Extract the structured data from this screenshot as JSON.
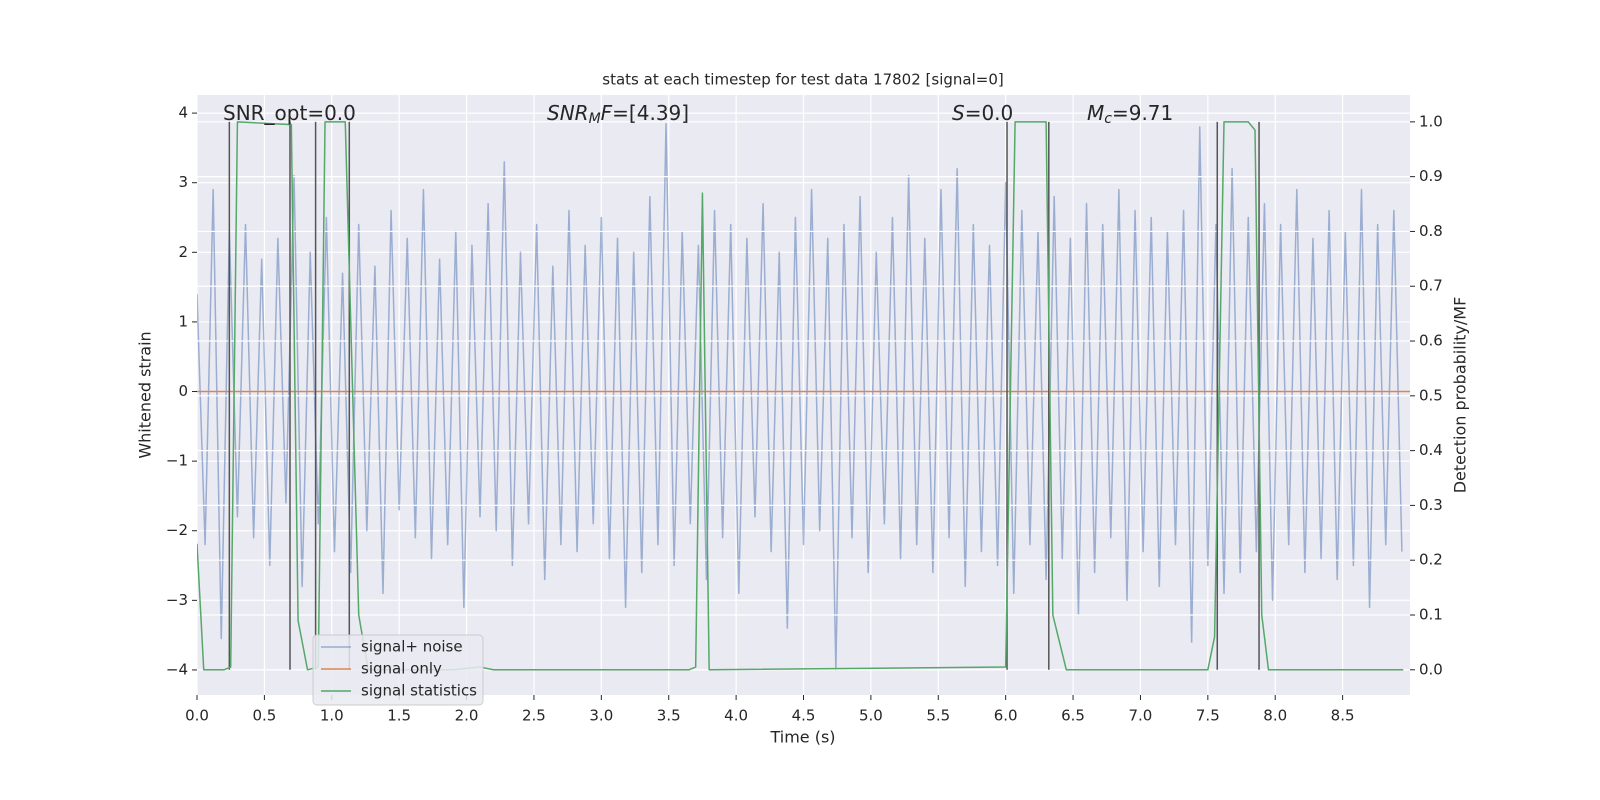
{
  "chart_data": {
    "type": "line",
    "title": "stats at each timestep for test data 17802 [signal=0]",
    "xlabel": "Time (s)",
    "ylabel": "Whitened strain",
    "y2label": "Detection probability/MF",
    "xlim": [
      0,
      9.0
    ],
    "ylim": [
      -4.36,
      4.26
    ],
    "y2lim": [
      -0.046,
      1.049
    ],
    "xticks": [
      {
        "value": 0,
        "label": "0.0"
      },
      0.5,
      {
        "value": 1,
        "label": "1.0"
      },
      1.5,
      {
        "value": 2,
        "label": "2.0"
      },
      2.5,
      {
        "value": 3,
        "label": "3.0"
      },
      3.5,
      {
        "value": 4,
        "label": "4.0"
      },
      4.5,
      {
        "value": 5,
        "label": "5.0"
      },
      5.5,
      {
        "value": 6,
        "label": "6.0"
      },
      6.5,
      {
        "value": 7,
        "label": "7.0"
      },
      7.5,
      {
        "value": 8,
        "label": "8.0"
      },
      8.5
    ],
    "yticks": [
      {
        "value": -4,
        "label": "−4"
      },
      {
        "value": -3,
        "label": "−3"
      },
      {
        "value": -2,
        "label": "−2"
      },
      {
        "value": -1,
        "label": "−1"
      },
      0,
      1,
      2,
      3,
      4
    ],
    "y2ticks": [
      {
        "value": 0,
        "label": "0.0"
      },
      0.1,
      0.2,
      0.3,
      0.4,
      0.5,
      0.6,
      0.7,
      0.8,
      0.9,
      {
        "value": 1,
        "label": "1.0"
      }
    ],
    "grid": true,
    "series": [
      {
        "name": "signal+ noise",
        "color": "#4c72b0",
        "opacity": 0.5,
        "x": [
          0,
          0.06,
          0.12,
          0.18,
          0.24,
          0.3,
          0.36,
          0.42,
          0.48,
          0.54,
          0.6,
          0.66,
          0.72,
          0.78,
          0.84,
          0.9,
          0.96,
          1.02,
          1.08,
          1.14,
          1.2,
          1.26,
          1.32,
          1.38,
          1.44,
          1.5,
          1.56,
          1.62,
          1.68,
          1.74,
          1.8,
          1.86,
          1.92,
          1.98,
          2.04,
          2.1,
          2.16,
          2.22,
          2.28,
          2.34,
          2.4,
          2.46,
          2.52,
          2.58,
          2.64,
          2.7,
          2.76,
          2.82,
          2.88,
          2.94,
          3,
          3.06,
          3.12,
          3.18,
          3.24,
          3.3,
          3.36,
          3.42,
          3.48,
          3.54,
          3.6,
          3.66,
          3.72,
          3.78,
          3.84,
          3.9,
          3.96,
          4.02,
          4.08,
          4.14,
          4.2,
          4.26,
          4.32,
          4.38,
          4.44,
          4.5,
          4.56,
          4.62,
          4.68,
          4.74,
          4.8,
          4.86,
          4.92,
          4.98,
          5.04,
          5.1,
          5.16,
          5.22,
          5.28,
          5.34,
          5.4,
          5.46,
          5.52,
          5.58,
          5.64,
          5.7,
          5.76,
          5.82,
          5.88,
          5.94,
          6,
          6.06,
          6.12,
          6.18,
          6.24,
          6.3,
          6.36,
          6.42,
          6.48,
          6.54,
          6.6,
          6.66,
          6.72,
          6.78,
          6.84,
          6.9,
          6.96,
          7.02,
          7.08,
          7.14,
          7.2,
          7.26,
          7.32,
          7.38,
          7.44,
          7.5,
          7.56,
          7.62,
          7.68,
          7.74,
          7.8,
          7.86,
          7.92,
          7.98,
          8.04,
          8.1,
          8.16,
          8.22,
          8.28,
          8.34,
          8.4,
          8.46,
          8.52,
          8.58,
          8.64,
          8.7,
          8.76,
          8.82,
          8.88,
          8.94
        ],
        "values": [
          1.4,
          -2.2,
          2.9,
          -3.55,
          2.3,
          -1.8,
          2.4,
          -2.1,
          1.9,
          -2.5,
          2.2,
          -1.6,
          3.1,
          -2.8,
          2.0,
          -1.9,
          2.5,
          -2.3,
          1.7,
          -2.6,
          2.4,
          -2.0,
          1.8,
          -2.9,
          2.6,
          -1.7,
          2.2,
          -2.1,
          2.9,
          -2.4,
          1.9,
          -2.2,
          2.3,
          -3.1,
          2.1,
          -1.8,
          2.7,
          -2.0,
          3.3,
          -2.5,
          2.0,
          -1.9,
          2.4,
          -2.7,
          1.8,
          -2.2,
          2.6,
          -2.3,
          2.1,
          -1.9,
          2.5,
          -2.4,
          2.2,
          -3.1,
          2.0,
          -2.6,
          2.8,
          -2.2,
          3.85,
          -2.5,
          2.3,
          -1.9,
          2.1,
          -2.7,
          2.6,
          -2.1,
          2.4,
          -2.9,
          2.2,
          -1.8,
          2.7,
          -2.3,
          2.0,
          -3.4,
          2.5,
          -2.2,
          2.9,
          -2.0,
          2.2,
          -4.0,
          2.4,
          -2.1,
          2.8,
          -2.6,
          2.0,
          -1.9,
          2.5,
          -2.4,
          3.1,
          -2.2,
          2.2,
          -2.6,
          2.9,
          -2.1,
          3.2,
          -2.8,
          2.4,
          -2.3,
          2.1,
          -2.5,
          3.0,
          -2.9,
          2.6,
          -2.2,
          2.3,
          -2.7,
          2.8,
          -2.4,
          2.2,
          -3.2,
          2.7,
          -2.6,
          2.4,
          -2.1,
          2.9,
          -3.0,
          2.6,
          -2.3,
          2.5,
          -2.8,
          2.3,
          -2.2,
          2.6,
          -3.6,
          3.8,
          -2.5,
          2.4,
          -2.9,
          3.2,
          -2.6,
          2.5,
          -2.3,
          2.7,
          -3.0,
          2.4,
          -2.2,
          2.9,
          -2.6,
          2.2,
          -2.4,
          2.6,
          -2.7,
          2.3,
          -2.5,
          2.9,
          -3.1,
          2.4,
          -2.2,
          2.6,
          -2.3
        ]
      },
      {
        "name": "signal only",
        "color": "#dd8452",
        "x": [
          0,
          9.0
        ],
        "values": [
          0,
          0
        ]
      },
      {
        "name": "signal statistics",
        "color": "#55a868",
        "axis": "y2",
        "x": [
          0,
          0.05,
          0.2,
          0.25,
          0.3,
          0.7,
          0.75,
          0.82,
          0.9,
          0.95,
          1.1,
          1.2,
          1.27,
          1.9,
          2.1,
          2.2,
          3.65,
          3.7,
          3.75,
          3.8,
          6.0,
          6.07,
          6.3,
          6.35,
          6.45,
          7.5,
          7.55,
          7.62,
          7.8,
          7.85,
          7.9,
          7.95,
          8.95
        ],
        "values": [
          0.23,
          0,
          0,
          0.005,
          1.0,
          0.995,
          0.09,
          0,
          0.005,
          1.0,
          1.0,
          0.1,
          0,
          0,
          0.005,
          0,
          0,
          0.005,
          0.87,
          0,
          0.005,
          1.0,
          1.0,
          0.1,
          0,
          0,
          0.06,
          1.0,
          1.0,
          0.985,
          0.1,
          0,
          0
        ]
      }
    ],
    "vlines": {
      "x": [
        0.24,
        0.69,
        0.88,
        1.13,
        6.01,
        6.32,
        7.57,
        7.88
      ],
      "ymin": 0,
      "ymax": 1,
      "axis": "y2",
      "color": "#555555"
    },
    "annotations": [
      [
        {
          "text": "SNR_opt=0.0"
        }
      ],
      [
        {
          "text": "SNR",
          "style": "italic"
        },
        {
          "text": "M",
          "style": "sub"
        },
        {
          "text": "F",
          "style": "italic"
        },
        {
          "text": "=[4.39]"
        }
      ],
      [
        {
          "text": "S",
          "style": "italic"
        },
        {
          "text": "=0.0"
        }
      ],
      [
        {
          "text": "M",
          "style": "italic"
        },
        {
          "text": "c",
          "style": "sub"
        },
        {
          "text": "=9.71"
        }
      ]
    ]
  }
}
